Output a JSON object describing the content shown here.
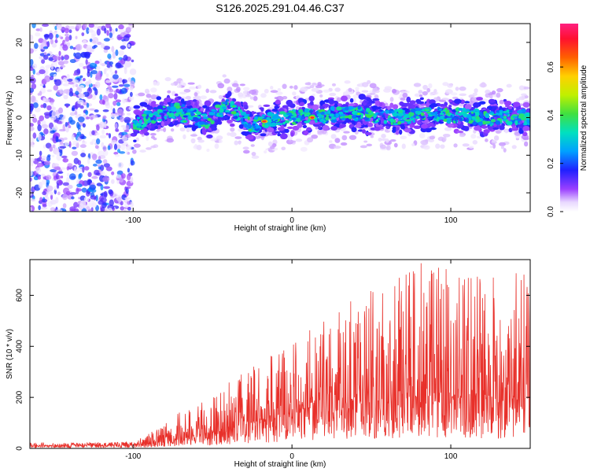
{
  "title": "S126.2025.291.04.46.C37",
  "chart_data": [
    {
      "type": "heatmap",
      "name": "spectrogram",
      "xlabel": "Height of straight line (km)",
      "ylabel": "Frequency (Hz)",
      "xlim": [
        -165,
        150
      ],
      "ylim": [
        -25,
        25
      ],
      "xticks": [
        -100,
        0,
        100
      ],
      "xtick_labels": [
        "-100",
        "0",
        "100"
      ],
      "yticks": [
        -20,
        -10,
        0,
        10,
        20
      ],
      "ytick_labels": [
        "-20",
        "-10",
        "0",
        "10",
        "20"
      ],
      "noise_region_x": [
        -165,
        -100
      ],
      "signal_band": {
        "x_start": -100,
        "x_end": 150,
        "center_freq": [
          {
            "x": -100,
            "f": -2
          },
          {
            "x": -85,
            "f": 1
          },
          {
            "x": -70,
            "f": 2
          },
          {
            "x": -55,
            "f": -1
          },
          {
            "x": -40,
            "f": 3
          },
          {
            "x": -25,
            "f": -2
          },
          {
            "x": -10,
            "f": 0
          },
          {
            "x": 15,
            "f": 0.5
          },
          {
            "x": 40,
            "f": 1
          },
          {
            "x": 65,
            "f": 0
          },
          {
            "x": 90,
            "f": 1
          },
          {
            "x": 120,
            "f": 0
          },
          {
            "x": 150,
            "f": 0
          }
        ],
        "half_width_hz": 4,
        "peaks": [
          {
            "x": -17,
            "f": -1,
            "amplitude": 0.75
          },
          {
            "x": 13,
            "f": 0,
            "amplitude": 0.75
          },
          {
            "x": 42,
            "f": 1,
            "amplitude": 0.45
          },
          {
            "x": 85,
            "f": 2,
            "amplitude": 0.4
          },
          {
            "x": -68,
            "f": -1,
            "amplitude": 0.4
          },
          {
            "x": -37,
            "f": 3,
            "amplitude": 0.4
          }
        ]
      },
      "colorbar": {
        "label": "Normalized spectral amplitude",
        "range": [
          0,
          0.78
        ],
        "ticks": [
          0.0,
          0.2,
          0.4,
          0.6
        ],
        "tick_labels": [
          "0.0",
          "0.2",
          "0.4",
          "0.6"
        ]
      }
    },
    {
      "type": "line",
      "name": "snr",
      "xlabel": "Height of straight line (km)",
      "ylabel": "SNR (10 * v/v)",
      "xlim": [
        -165,
        150
      ],
      "ylim": [
        0,
        740
      ],
      "xticks": [
        -100,
        0,
        100
      ],
      "xtick_labels": [
        "-100",
        "0",
        "100"
      ],
      "yticks": [
        0,
        200,
        400,
        600
      ],
      "ytick_labels": [
        "0",
        "200",
        "400",
        "600"
      ],
      "color": "#e8302a",
      "envelope": [
        {
          "x": -165,
          "base": 10,
          "max": 22
        },
        {
          "x": -100,
          "base": 12,
          "max": 25
        },
        {
          "x": -90,
          "base": 20,
          "max": 60
        },
        {
          "x": -75,
          "base": 35,
          "max": 130
        },
        {
          "x": -60,
          "base": 50,
          "max": 170
        },
        {
          "x": -50,
          "base": 60,
          "max": 210
        },
        {
          "x": -40,
          "base": 80,
          "max": 260
        },
        {
          "x": -25,
          "base": 100,
          "max": 320
        },
        {
          "x": -10,
          "base": 120,
          "max": 380
        },
        {
          "x": 0,
          "base": 140,
          "max": 430
        },
        {
          "x": 15,
          "base": 170,
          "max": 480
        },
        {
          "x": 30,
          "base": 180,
          "max": 560
        },
        {
          "x": 50,
          "base": 190,
          "max": 620
        },
        {
          "x": 75,
          "base": 200,
          "max": 740
        },
        {
          "x": 100,
          "base": 200,
          "max": 700
        },
        {
          "x": 130,
          "base": 190,
          "max": 680
        },
        {
          "x": 150,
          "base": 190,
          "max": 700
        }
      ]
    }
  ]
}
